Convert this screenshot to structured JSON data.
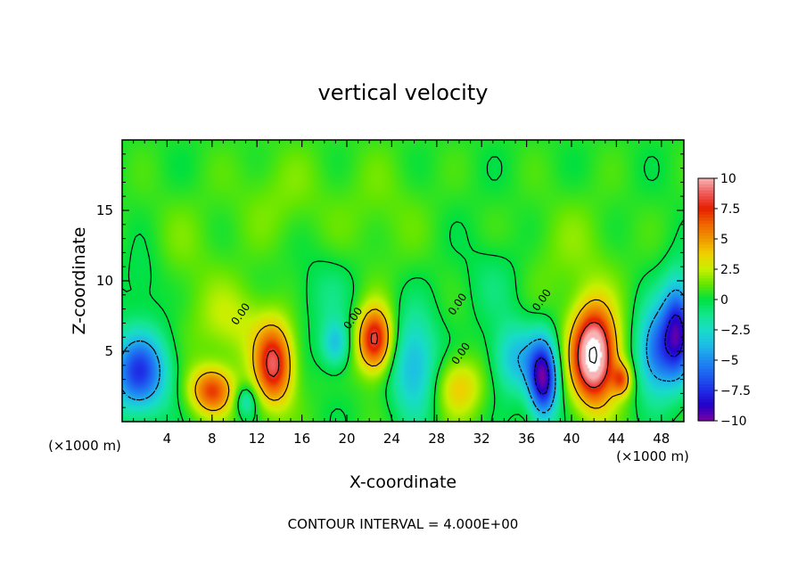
{
  "chart_data": {
    "type": "heatmap",
    "title": "vertical velocity",
    "xlabel": "X-coordinate",
    "ylabel": "Z-coordinate",
    "x_unit": "(×1000 m)",
    "x_unit_right": "(×1000 m)",
    "footer": "CONTOUR INTERVAL = 4.000E+00",
    "xlim": [
      0,
      50
    ],
    "ylim": [
      0,
      20
    ],
    "x_ticks": [
      4,
      8,
      12,
      16,
      20,
      24,
      28,
      32,
      36,
      40,
      44,
      48
    ],
    "x_tick_labels": [
      "4",
      "8",
      "12",
      "16",
      "20",
      "24",
      "28",
      "32",
      "36",
      "40",
      "44",
      "48"
    ],
    "y_ticks": [
      5,
      10,
      15
    ],
    "y_tick_labels": [
      "5",
      "10",
      "15"
    ],
    "background_value": 0.4,
    "features": [
      {
        "x": 1.5,
        "z": 3.5,
        "amp": -7.5,
        "sx": 1.8,
        "sz": 2.0
      },
      {
        "x": 8.0,
        "z": 2.2,
        "amp": 6.5,
        "sx": 1.4,
        "sz": 1.2
      },
      {
        "x": 10.0,
        "z": 7.0,
        "amp": 2.0,
        "sx": 2.5,
        "sz": 2.0
      },
      {
        "x": 13.5,
        "z": 4.0,
        "amp": 8.0,
        "sx": 1.2,
        "sz": 2.0
      },
      {
        "x": 11.0,
        "z": 1.5,
        "amp": -3.0,
        "sx": 0.7,
        "sz": 0.8
      },
      {
        "x": 19.0,
        "z": 5.5,
        "amp": -4.0,
        "sx": 0.9,
        "sz": 1.2
      },
      {
        "x": 22.5,
        "z": 5.8,
        "amp": 8.5,
        "sx": 1.1,
        "sz": 1.6
      },
      {
        "x": 26.0,
        "z": 4.0,
        "amp": -4.5,
        "sx": 1.5,
        "sz": 2.5
      },
      {
        "x": 30.0,
        "z": 2.5,
        "amp": 3.5,
        "sx": 1.5,
        "sz": 1.5
      },
      {
        "x": 35.0,
        "z": 4.5,
        "amp": -4.0,
        "sx": 1.5,
        "sz": 1.8
      },
      {
        "x": 37.5,
        "z": 3.0,
        "amp": -9.5,
        "sx": 0.9,
        "sz": 2.0
      },
      {
        "x": 42.0,
        "z": 4.7,
        "amp": 12.0,
        "sx": 1.4,
        "sz": 2.4
      },
      {
        "x": 44.5,
        "z": 3.0,
        "amp": 5.0,
        "sx": 0.6,
        "sz": 0.8
      },
      {
        "x": 47.5,
        "z": 5.0,
        "amp": -6.0,
        "sx": 1.2,
        "sz": 2.2
      },
      {
        "x": 49.5,
        "z": 6.5,
        "amp": -8.5,
        "sx": 1.0,
        "sz": 2.5
      },
      {
        "x": 5.0,
        "z": 12.0,
        "amp": 0.8,
        "sx": 3.0,
        "sz": 3.0
      },
      {
        "x": 14.0,
        "z": 16.0,
        "amp": 1.0,
        "sx": 3.0,
        "sz": 2.5
      },
      {
        "x": 23.0,
        "z": 15.0,
        "amp": 0.8,
        "sx": 3.0,
        "sz": 3.0
      },
      {
        "x": 40.0,
        "z": 12.0,
        "amp": 1.0,
        "sx": 3.0,
        "sz": 3.0
      },
      {
        "x": 2.0,
        "z": 10.0,
        "amp": -1.2,
        "sx": 1.5,
        "sz": 2.0
      },
      {
        "x": 18.0,
        "z": 9.0,
        "amp": -1.2,
        "sx": 2.0,
        "sz": 2.0
      },
      {
        "x": 33.0,
        "z": 10.0,
        "amp": -1.0,
        "sx": 2.0,
        "sz": 2.0
      }
    ],
    "colorbar": {
      "min": -10,
      "max": 10,
      "labels": [
        "10",
        "7.5",
        "5",
        "2.5",
        "0",
        "−2.5",
        "−5",
        "−7.5",
        "−10"
      ],
      "colors": [
        {
          "v": -10,
          "c": "#7b00a0"
        },
        {
          "v": -8.75,
          "c": "#2400c8"
        },
        {
          "v": -7.5,
          "c": "#1e2ce6"
        },
        {
          "v": -6.25,
          "c": "#1e5ff0"
        },
        {
          "v": -5,
          "c": "#1e8cf0"
        },
        {
          "v": -3.75,
          "c": "#1ebde6"
        },
        {
          "v": -2.5,
          "c": "#18dcc8"
        },
        {
          "v": -1.25,
          "c": "#14e68c"
        },
        {
          "v": 0,
          "c": "#00e040"
        },
        {
          "v": 1.25,
          "c": "#64e600"
        },
        {
          "v": 2.5,
          "c": "#c8f000"
        },
        {
          "v": 3.75,
          "c": "#f0d000"
        },
        {
          "v": 5,
          "c": "#f09600"
        },
        {
          "v": 6.25,
          "c": "#f06400"
        },
        {
          "v": 7.5,
          "c": "#e61e00"
        },
        {
          "v": 8.75,
          "c": "#f05a5a"
        },
        {
          "v": 10,
          "c": "#f8b4b4"
        }
      ]
    },
    "contour_labels": [
      {
        "text": "0.00",
        "x": 10.2,
        "z": 6.8
      },
      {
        "text": "0.00",
        "x": 20.2,
        "z": 6.5
      },
      {
        "text": "0.00",
        "x": 29.5,
        "z": 7.5
      },
      {
        "text": "0.00",
        "x": 29.8,
        "z": 4.0
      },
      {
        "text": "0.00",
        "x": 37.0,
        "z": 7.8
      }
    ]
  }
}
